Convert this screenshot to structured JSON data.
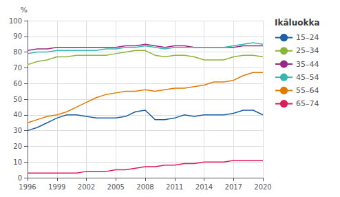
{
  "chart_data": {
    "type": "line",
    "x": [
      1996,
      1997,
      1998,
      1999,
      2000,
      2001,
      2002,
      2003,
      2004,
      2005,
      2006,
      2007,
      2008,
      2009,
      2010,
      2011,
      2012,
      2013,
      2014,
      2015,
      2016,
      2017,
      2018,
      2019,
      2020
    ],
    "series": [
      {
        "name": "15–24",
        "color": "#1f5fa6",
        "values": [
          30,
          32,
          35,
          38,
          40,
          40,
          39,
          38,
          38,
          38,
          39,
          42,
          43,
          37,
          37,
          38,
          40,
          39,
          40,
          40,
          40,
          41,
          43,
          43,
          40
        ]
      },
      {
        "name": "25–34",
        "color": "#8cb43a",
        "values": [
          72,
          74,
          75,
          77,
          77,
          78,
          78,
          78,
          78,
          79,
          80,
          81,
          81,
          78,
          77,
          78,
          78,
          77,
          75,
          75,
          75,
          77,
          78,
          78,
          77
        ]
      },
      {
        "name": "35–44",
        "color": "#9b2787",
        "values": [
          81,
          82,
          82,
          83,
          83,
          83,
          83,
          83,
          83,
          83,
          84,
          84,
          85,
          84,
          83,
          84,
          84,
          83,
          83,
          83,
          83,
          83,
          84,
          84,
          84
        ]
      },
      {
        "name": "45–54",
        "color": "#3ab5b0",
        "values": [
          79,
          80,
          80,
          81,
          81,
          81,
          81,
          81,
          82,
          82,
          83,
          83,
          84,
          83,
          82,
          83,
          83,
          83,
          83,
          83,
          83,
          84,
          85,
          86,
          85
        ]
      },
      {
        "name": "55–64",
        "color": "#e07b00",
        "values": [
          35,
          37,
          39,
          40,
          42,
          45,
          48,
          51,
          53,
          54,
          55,
          55,
          56,
          55,
          56,
          57,
          57,
          58,
          59,
          61,
          61,
          62,
          65,
          67,
          67
        ]
      },
      {
        "name": "65–74",
        "color": "#e0195a",
        "values": [
          3,
          3,
          3,
          3,
          3,
          3,
          4,
          4,
          4,
          5,
          5,
          6,
          7,
          7,
          8,
          8,
          9,
          9,
          10,
          10,
          10,
          11,
          11,
          11,
          11
        ]
      }
    ],
    "ylabel": "%",
    "legend_title": "Ikäluokka",
    "legend": "right",
    "xlim": [
      1996,
      2020
    ],
    "xticks": [
      1996,
      1999,
      2002,
      2005,
      2008,
      2011,
      2014,
      2017,
      2020
    ],
    "ylim": [
      0,
      100
    ],
    "yticks": [
      0,
      10,
      20,
      30,
      40,
      50,
      60,
      70,
      80,
      90,
      100
    ],
    "grid": true
  }
}
